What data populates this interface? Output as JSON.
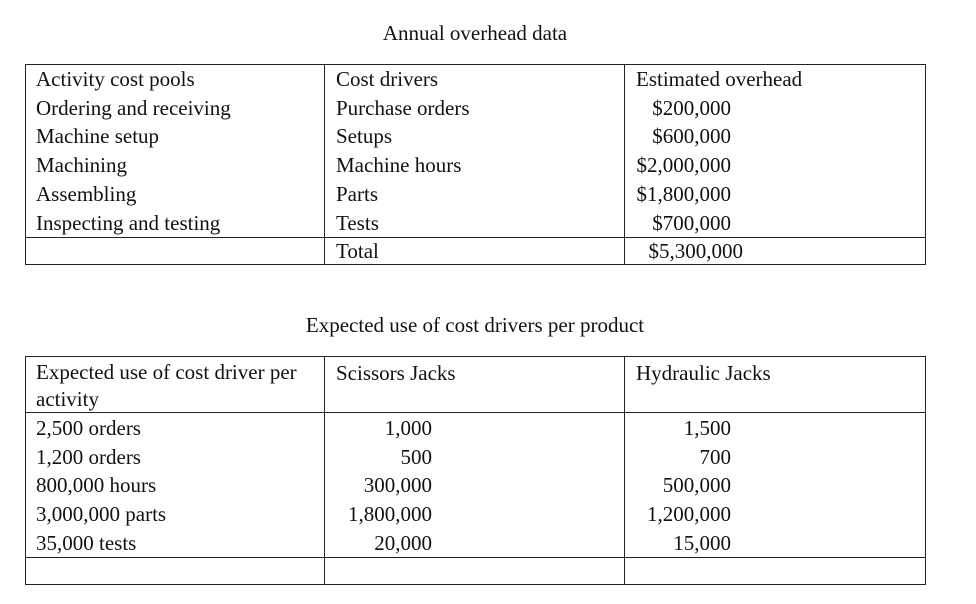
{
  "table1": {
    "title": "Annual overhead data",
    "header": [
      "Activity cost pools",
      "Cost drivers",
      "Estimated overhead"
    ],
    "rows": [
      [
        "Ordering and receiving",
        "Purchase orders",
        "$200,000"
      ],
      [
        "Machine setup",
        "Setups",
        "$600,000"
      ],
      [
        "Machining",
        "Machine hours",
        "$2,000,000"
      ],
      [
        "Assembling",
        "Parts",
        "$1,800,000"
      ],
      [
        "Inspecting and testing",
        "Tests",
        "$700,000"
      ]
    ],
    "total_label": "Total",
    "total_value": "$5,300,000"
  },
  "table2": {
    "title": "Expected use of cost drivers per product",
    "header": [
      "Expected use of cost driver per activity",
      "Scissors Jacks",
      "Hydraulic Jacks"
    ],
    "rows": [
      [
        "2,500 orders",
        "1,000",
        "1,500"
      ],
      [
        "1,200 orders",
        "500",
        "700"
      ],
      [
        "800,000 hours",
        "300,000",
        "500,000"
      ],
      [
        "3,000,000 parts",
        "1,800,000",
        "1,200,000"
      ],
      [
        "35,000 tests",
        "20,000",
        "15,000"
      ]
    ]
  }
}
